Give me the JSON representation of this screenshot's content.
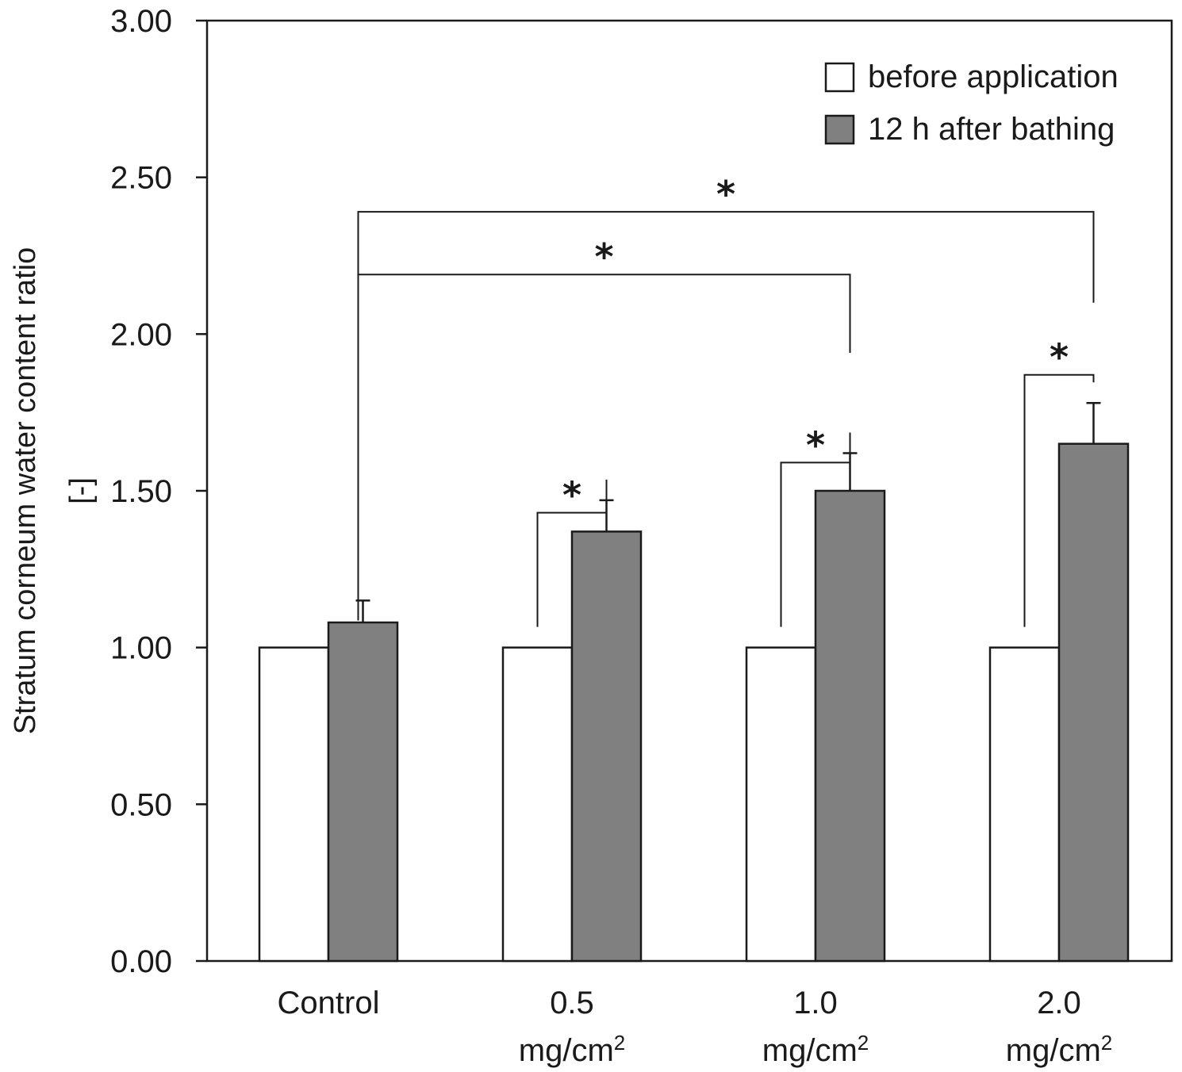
{
  "chart_data": {
    "type": "bar",
    "ylabel_line1": "Stratum corneum water content ratio",
    "ylabel_line2": "[-]",
    "ylim": [
      0,
      3.0
    ],
    "yticks": [
      "0.00",
      "0.50",
      "1.00",
      "1.50",
      "2.00",
      "2.50",
      "3.00"
    ],
    "categories": [
      {
        "line1": "Control",
        "line2": "",
        "sup": ""
      },
      {
        "line1": "0.5",
        "line2": "mg/cm",
        "sup": "2"
      },
      {
        "line1": "1.0",
        "line2": "mg/cm",
        "sup": "2"
      },
      {
        "line1": "2.0",
        "line2": "mg/cm",
        "sup": "2"
      }
    ],
    "series": [
      {
        "name": "before application",
        "color": "#ffffff",
        "values": [
          1.0,
          1.0,
          1.0,
          1.0
        ],
        "errors": [
          0,
          0,
          0,
          0
        ]
      },
      {
        "name": "12 h after bathing",
        "color": "#808080",
        "values": [
          1.08,
          1.37,
          1.5,
          1.65
        ],
        "errors": [
          0.07,
          0.1,
          0.12,
          0.13
        ]
      }
    ],
    "legend_position": "top-right",
    "grid": false,
    "significance": [
      {
        "from_category": 1,
        "to_category": 1,
        "symbol": "*",
        "level": 1.43
      },
      {
        "from_category": 2,
        "to_category": 2,
        "symbol": "*",
        "level": 1.59
      },
      {
        "from_category": 3,
        "to_category": 3,
        "symbol": "*",
        "level": 1.87
      },
      {
        "from_category": 0,
        "to_category": 2,
        "symbol": "*",
        "level": 2.19
      },
      {
        "from_category": 0,
        "to_category": 3,
        "symbol": "*",
        "level": 2.39
      }
    ]
  }
}
